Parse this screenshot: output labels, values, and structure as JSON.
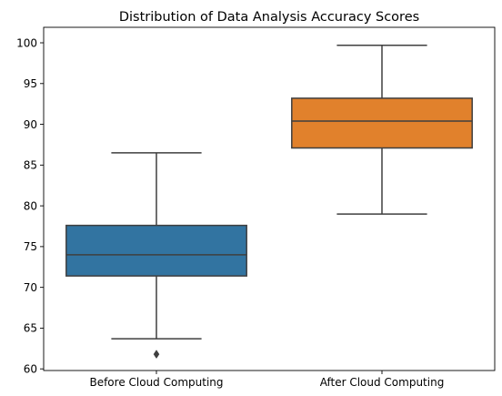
{
  "chart_data": {
    "type": "box",
    "title": "Distribution of Data Analysis Accuracy Scores",
    "xlabel": "",
    "ylabel": "",
    "ylim": [
      59.8,
      101.9
    ],
    "yticks": [
      60,
      65,
      70,
      75,
      80,
      85,
      90,
      95,
      100
    ],
    "grid": false,
    "categories": [
      "Before Cloud Computing",
      "After Cloud Computing"
    ],
    "boxes": [
      {
        "category": "Before Cloud Computing",
        "color": "#3274a1",
        "whisker_low": 63.7,
        "q1": 71.4,
        "median": 74.0,
        "q3": 77.6,
        "whisker_high": 86.5,
        "outliers": [
          61.8
        ]
      },
      {
        "category": "After Cloud Computing",
        "color": "#e1812c",
        "whisker_low": 79.0,
        "q1": 87.1,
        "median": 90.4,
        "q3": 93.2,
        "whisker_high": 99.7,
        "outliers": []
      }
    ]
  }
}
